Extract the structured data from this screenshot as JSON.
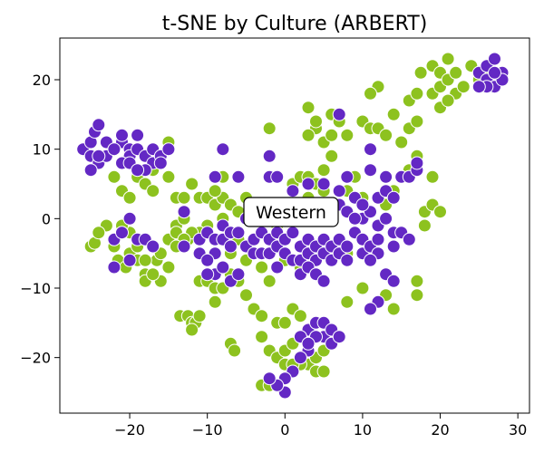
{
  "chart_data": {
    "type": "scatter",
    "title": "t-SNE by Culture (ARBERT)",
    "xlabel": "",
    "ylabel": "",
    "xlim": [
      -29,
      31.5
    ],
    "ylim": [
      -28,
      26
    ],
    "xticks": [
      -20,
      -10,
      0,
      10,
      20,
      30
    ],
    "yticks": [
      -20,
      -10,
      0,
      10,
      20
    ],
    "xtick_labels": [
      "−20",
      "−10",
      "0",
      "10",
      "20",
      "30"
    ],
    "ytick_labels": [
      "−20",
      "−10",
      "0",
      "10",
      "20"
    ],
    "grid": false,
    "legend": null,
    "annotation": {
      "text": "Western",
      "x": 1,
      "y": 1
    },
    "series": [
      {
        "color": "#8dc21f",
        "points": [
          [
            -25,
            -4
          ],
          [
            -24.5,
            -3.5
          ],
          [
            -22,
            -4
          ],
          [
            -21.5,
            -6
          ],
          [
            -20.5,
            -7
          ],
          [
            -20,
            -5
          ],
          [
            -19,
            -6
          ],
          [
            -18,
            -8
          ],
          [
            -18,
            -9
          ],
          [
            -17,
            -4
          ],
          [
            -16.5,
            -6
          ],
          [
            -16,
            -5
          ],
          [
            -15,
            -3
          ],
          [
            -14,
            -1
          ],
          [
            -14,
            -2
          ],
          [
            -13,
            0
          ],
          [
            -12.5,
            -3
          ],
          [
            -13.5,
            -14
          ],
          [
            -12.5,
            -14
          ],
          [
            -12,
            -15
          ],
          [
            -11.5,
            -15
          ],
          [
            -11,
            -14
          ],
          [
            -12,
            -16
          ],
          [
            -11,
            -9
          ],
          [
            -10,
            -9
          ],
          [
            -9,
            -10
          ],
          [
            -9,
            -12
          ],
          [
            -8,
            -10
          ],
          [
            -7,
            -8
          ],
          [
            -6,
            -9
          ],
          [
            -5,
            -11
          ],
          [
            -7,
            -18
          ],
          [
            -6.5,
            -19
          ],
          [
            -4,
            -13
          ],
          [
            -3,
            -14
          ],
          [
            -3,
            -17
          ],
          [
            -2,
            -19
          ],
          [
            -1,
            -20
          ],
          [
            0,
            -19
          ],
          [
            0,
            -21
          ],
          [
            1,
            -18
          ],
          [
            2,
            -17
          ],
          [
            2,
            -20
          ],
          [
            3,
            -18
          ],
          [
            3,
            -21
          ],
          [
            4,
            -20
          ],
          [
            4,
            -22
          ],
          [
            5,
            -22
          ],
          [
            5,
            -19
          ],
          [
            3,
            -19
          ],
          [
            2,
            -21
          ],
          [
            1,
            -21
          ],
          [
            -3,
            -24
          ],
          [
            -2,
            -24
          ],
          [
            -1,
            -15
          ],
          [
            0,
            -15
          ],
          [
            1,
            -13
          ],
          [
            2,
            -14
          ],
          [
            -22,
            6
          ],
          [
            -21,
            4
          ],
          [
            -20,
            3
          ],
          [
            -19,
            6
          ],
          [
            -18,
            5
          ],
          [
            -17,
            7
          ],
          [
            -17,
            4
          ],
          [
            -16,
            8
          ],
          [
            -15,
            6
          ],
          [
            -15,
            11
          ],
          [
            -14,
            3
          ],
          [
            -13,
            3
          ],
          [
            -12,
            5
          ],
          [
            -11,
            3
          ],
          [
            -10,
            3
          ],
          [
            -9,
            2
          ],
          [
            -8,
            3
          ],
          [
            -8,
            0
          ],
          [
            -7,
            2
          ],
          [
            -6,
            1
          ],
          [
            -5,
            3
          ],
          [
            -4,
            2
          ],
          [
            -3,
            -2
          ],
          [
            -2,
            0
          ],
          [
            -1,
            -1
          ],
          [
            0,
            1
          ],
          [
            1,
            2
          ],
          [
            1,
            5
          ],
          [
            2,
            6
          ],
          [
            3,
            3
          ],
          [
            3,
            6
          ],
          [
            4,
            5
          ],
          [
            5,
            4
          ],
          [
            6,
            2
          ],
          [
            7,
            -3
          ],
          [
            8,
            -5
          ],
          [
            -5,
            -6
          ],
          [
            -4,
            -5
          ],
          [
            -3,
            -7
          ],
          [
            -2,
            -9
          ],
          [
            0,
            -6
          ],
          [
            2,
            -7
          ],
          [
            8,
            -12
          ],
          [
            10,
            -10
          ],
          [
            13,
            -11
          ],
          [
            14,
            -13
          ],
          [
            3,
            16
          ],
          [
            4,
            13
          ],
          [
            5,
            11
          ],
          [
            6,
            12
          ],
          [
            6,
            15
          ],
          [
            7,
            14
          ],
          [
            8,
            12
          ],
          [
            3,
            12
          ],
          [
            4,
            14
          ],
          [
            6,
            9
          ],
          [
            5,
            7
          ],
          [
            -2,
            13
          ],
          [
            10,
            14
          ],
          [
            11,
            13
          ],
          [
            12,
            13
          ],
          [
            13,
            12
          ],
          [
            14,
            15
          ],
          [
            15,
            11
          ],
          [
            16,
            13
          ],
          [
            17,
            14
          ],
          [
            16,
            17
          ],
          [
            17,
            18
          ],
          [
            17.5,
            21
          ],
          [
            12,
            19
          ],
          [
            11,
            18
          ],
          [
            16,
            7
          ],
          [
            17,
            9
          ],
          [
            19,
            6
          ],
          [
            18,
            1
          ],
          [
            19,
            2
          ],
          [
            20,
            1
          ],
          [
            18,
            -1
          ],
          [
            17,
            -9
          ],
          [
            17,
            -11
          ],
          [
            19,
            18
          ],
          [
            19,
            22
          ],
          [
            20,
            21
          ],
          [
            20,
            19
          ],
          [
            21,
            23
          ],
          [
            21,
            20
          ],
          [
            22,
            21
          ],
          [
            22,
            18
          ],
          [
            23,
            19
          ],
          [
            20,
            16
          ],
          [
            21,
            17
          ],
          [
            24,
            22
          ],
          [
            25,
            20
          ],
          [
            26,
            21
          ],
          [
            27,
            19
          ],
          [
            14,
            4
          ],
          [
            15,
            6
          ],
          [
            16,
            6
          ],
          [
            13,
            2
          ],
          [
            10,
            3
          ],
          [
            9,
            6
          ],
          [
            8,
            4
          ],
          [
            -8,
            6
          ],
          [
            -9,
            4
          ],
          [
            -6,
            -3
          ],
          [
            -7,
            -5
          ],
          [
            -10,
            -1
          ],
          [
            -11,
            -2
          ],
          [
            -12,
            -2
          ],
          [
            -13,
            -3
          ],
          [
            -14,
            -4
          ],
          [
            -15,
            -7
          ],
          [
            -16,
            -9
          ],
          [
            -17,
            -8
          ],
          [
            -18,
            -6
          ],
          [
            -19,
            -4
          ],
          [
            -20,
            -2
          ],
          [
            -21,
            -1
          ],
          [
            -23,
            -1
          ],
          [
            -24,
            -2
          ]
        ]
      },
      {
        "color": "#6328c4",
        "points": [
          [
            -26,
            10
          ],
          [
            -25,
            11
          ],
          [
            -24.5,
            12.5
          ],
          [
            -24,
            13.5
          ],
          [
            -25,
            9
          ],
          [
            -24,
            8
          ],
          [
            -23,
            9
          ],
          [
            -23,
            11
          ],
          [
            -21,
            11
          ],
          [
            -21,
            12
          ],
          [
            -20,
            10
          ],
          [
            -20,
            9
          ],
          [
            -19,
            12
          ],
          [
            -19,
            10
          ],
          [
            -18,
            9
          ],
          [
            -17,
            8
          ],
          [
            -17,
            10
          ],
          [
            -16,
            9
          ],
          [
            -15,
            10
          ],
          [
            -25,
            7
          ],
          [
            -24,
            9
          ],
          [
            -22,
            10
          ],
          [
            -21,
            8
          ],
          [
            -20,
            8
          ],
          [
            -18,
            7
          ],
          [
            -19,
            7
          ],
          [
            -16,
            8
          ],
          [
            -22,
            -3
          ],
          [
            -21,
            -2
          ],
          [
            -20,
            0
          ],
          [
            -19,
            -3
          ],
          [
            -18,
            -3
          ],
          [
            -17,
            -4
          ],
          [
            -22,
            -7
          ],
          [
            -20,
            -6
          ],
          [
            -13,
            1
          ],
          [
            -13,
            -4
          ],
          [
            -11,
            -3
          ],
          [
            -11,
            -5
          ],
          [
            -10,
            -2
          ],
          [
            -9,
            -3
          ],
          [
            -9,
            -5
          ],
          [
            -8,
            -1
          ],
          [
            -8,
            -3
          ],
          [
            -7,
            -4
          ],
          [
            -7,
            -2
          ],
          [
            -6,
            -2
          ],
          [
            -5,
            0
          ],
          [
            -5,
            -4
          ],
          [
            -4,
            -5
          ],
          [
            -4,
            -3
          ],
          [
            -3,
            -2
          ],
          [
            -3,
            -5
          ],
          [
            -2,
            -3
          ],
          [
            -2,
            -5
          ],
          [
            -1,
            -4
          ],
          [
            -1,
            -2
          ],
          [
            0,
            -3
          ],
          [
            0,
            -5
          ],
          [
            1,
            -2
          ],
          [
            1,
            -6
          ],
          [
            2,
            -4
          ],
          [
            2,
            -6
          ],
          [
            3,
            -3
          ],
          [
            3,
            -5
          ],
          [
            4,
            -4
          ],
          [
            4,
            -6
          ],
          [
            5,
            -3
          ],
          [
            5,
            -5
          ],
          [
            6,
            -4
          ],
          [
            6,
            -6
          ],
          [
            7,
            -5
          ],
          [
            7,
            -3
          ],
          [
            8,
            -4
          ],
          [
            8,
            -6
          ],
          [
            -10,
            -6
          ],
          [
            -9,
            -8
          ],
          [
            -8,
            -7
          ],
          [
            -7,
            -9
          ],
          [
            -6,
            -8
          ],
          [
            -10,
            -8
          ],
          [
            -1,
            -7
          ],
          [
            2,
            -8
          ],
          [
            3,
            -7
          ],
          [
            4,
            -8
          ],
          [
            5,
            -9
          ],
          [
            -9,
            6
          ],
          [
            -6,
            6
          ],
          [
            -8,
            10
          ],
          [
            -2,
            9
          ],
          [
            -2,
            6
          ],
          [
            -1,
            6
          ],
          [
            1,
            4
          ],
          [
            3,
            5
          ],
          [
            5,
            5
          ],
          [
            7,
            4
          ],
          [
            8,
            6
          ],
          [
            9,
            3
          ],
          [
            7,
            2
          ],
          [
            8,
            1
          ],
          [
            10,
            0
          ],
          [
            11,
            1
          ],
          [
            12,
            -1
          ],
          [
            13,
            0
          ],
          [
            12,
            3
          ],
          [
            13,
            4
          ],
          [
            14,
            3
          ],
          [
            13,
            6
          ],
          [
            15,
            6
          ],
          [
            16,
            6
          ],
          [
            17,
            7
          ],
          [
            17,
            8
          ],
          [
            11,
            7
          ],
          [
            11,
            10
          ],
          [
            10,
            2
          ],
          [
            9,
            0
          ],
          [
            9,
            -2
          ],
          [
            10,
            -3
          ],
          [
            10,
            -5
          ],
          [
            11,
            -4
          ],
          [
            12,
            -5
          ],
          [
            11,
            -6
          ],
          [
            12,
            -3
          ],
          [
            14,
            -2
          ],
          [
            14,
            -4
          ],
          [
            15,
            -2
          ],
          [
            16,
            -3
          ],
          [
            13,
            -8
          ],
          [
            14,
            -9
          ],
          [
            12,
            -12
          ],
          [
            11,
            -13
          ],
          [
            7,
            15
          ],
          [
            3,
            -16
          ],
          [
            4,
            -15
          ],
          [
            5,
            -15
          ],
          [
            5,
            -17
          ],
          [
            6,
            -16
          ],
          [
            6,
            -18
          ],
          [
            7,
            -17
          ],
          [
            3,
            -19
          ],
          [
            2,
            -20
          ],
          [
            1,
            -22
          ],
          [
            0,
            -23
          ],
          [
            0,
            -25
          ],
          [
            -1,
            -24
          ],
          [
            -2,
            -23
          ],
          [
            4,
            -17
          ],
          [
            2,
            -17
          ],
          [
            3,
            -18
          ],
          [
            25,
            21
          ],
          [
            26,
            22
          ],
          [
            26,
            20
          ],
          [
            27,
            23
          ],
          [
            27,
            19
          ],
          [
            28,
            21
          ],
          [
            28,
            20
          ],
          [
            26,
            19
          ],
          [
            25,
            19
          ],
          [
            27,
            21
          ]
        ]
      }
    ]
  }
}
